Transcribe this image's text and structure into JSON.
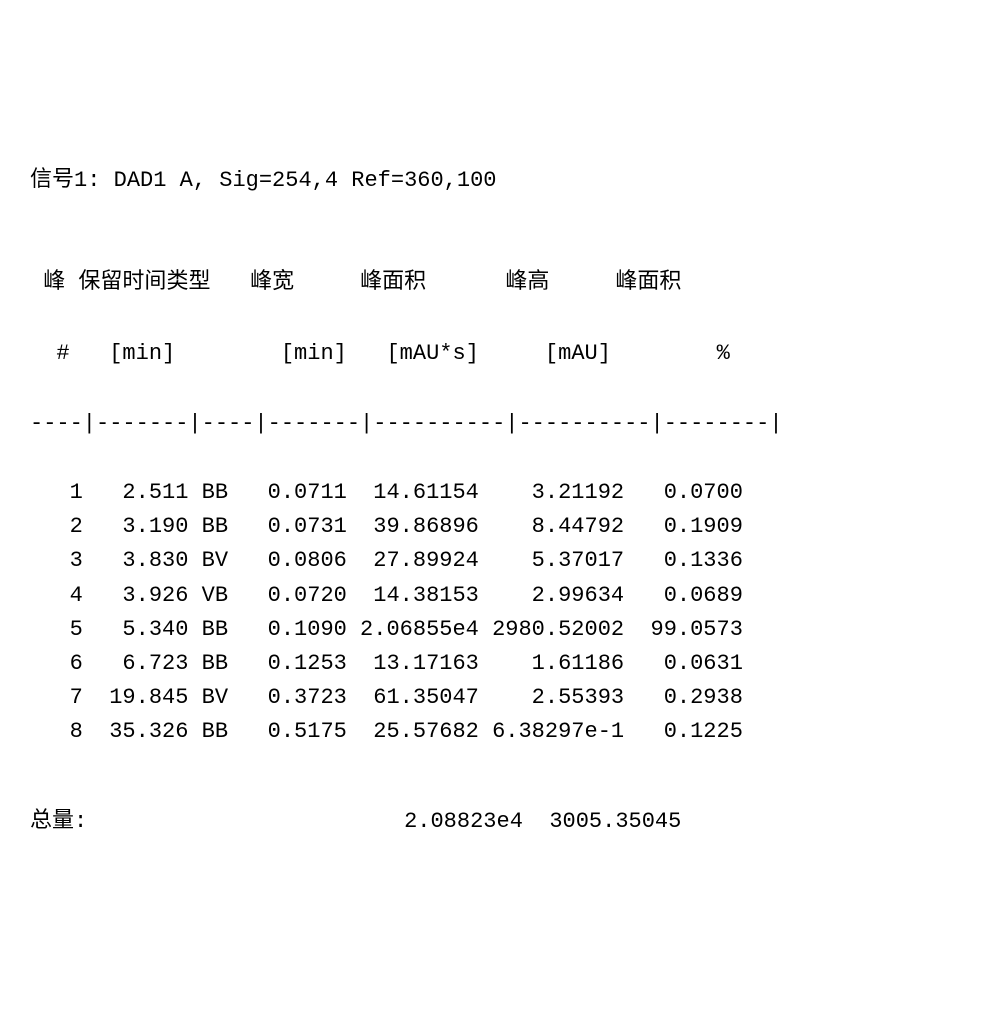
{
  "signal": {
    "label": "信号",
    "number": "1",
    "colon": ": ",
    "detail": "DAD1 A, Sig=254,4 Ref=360,100"
  },
  "table": {
    "columns": [
      {
        "label1": "峰",
        "label2": "#",
        "unit": ""
      },
      {
        "label1": "保留时间",
        "label2": "[min]",
        "unit": ""
      },
      {
        "label1": "类型",
        "label2": "",
        "unit": ""
      },
      {
        "label1": "峰宽",
        "label2": "[min]",
        "unit": ""
      },
      {
        "label1": "峰面积",
        "label2": "[mAU*s]",
        "unit": ""
      },
      {
        "label1": "峰高",
        "label2": "[mAU]",
        "unit": ""
      },
      {
        "label1": "峰面积",
        "label2": "%",
        "unit": ""
      }
    ],
    "divider": "----|-------|----|-------|----------|----------|--------|",
    "rows": [
      {
        "num": "1",
        "rt": "2.511",
        "type": "BB",
        "width": "0.0711",
        "area": "14.61154",
        "height": "3.21192",
        "pct": "0.0700"
      },
      {
        "num": "2",
        "rt": "3.190",
        "type": "BB",
        "width": "0.0731",
        "area": "39.86896",
        "height": "8.44792",
        "pct": "0.1909"
      },
      {
        "num": "3",
        "rt": "3.830",
        "type": "BV",
        "width": "0.0806",
        "area": "27.89924",
        "height": "5.37017",
        "pct": "0.1336"
      },
      {
        "num": "4",
        "rt": "3.926",
        "type": "VB",
        "width": "0.0720",
        "area": "14.38153",
        "height": "2.99634",
        "pct": "0.0689"
      },
      {
        "num": "5",
        "rt": "5.340",
        "type": "BB",
        "width": "0.1090",
        "area": "2.06855e4",
        "height": "2980.52002",
        "pct": "99.0573"
      },
      {
        "num": "6",
        "rt": "6.723",
        "type": "BB",
        "width": "0.1253",
        "area": "13.17163",
        "height": "1.61186",
        "pct": "0.0631"
      },
      {
        "num": "7",
        "rt": "19.845",
        "type": "BV",
        "width": "0.3723",
        "area": "61.35047",
        "height": "2.55393",
        "pct": "0.2938"
      },
      {
        "num": "8",
        "rt": "35.326",
        "type": "BB",
        "width": "0.5175",
        "area": "25.57682",
        "height": "6.38297e-1",
        "pct": "0.1225"
      }
    ]
  },
  "totals": {
    "label": "总量",
    "colon": ":",
    "area": "2.08823e4",
    "height": "3005.35045"
  },
  "styling": {
    "font_family_mono": "Courier New",
    "font_family_cjk": "SimSun",
    "font_size_pt": 22,
    "text_color": "#000000",
    "background_color": "#ffffff",
    "line_height": 1.6
  }
}
